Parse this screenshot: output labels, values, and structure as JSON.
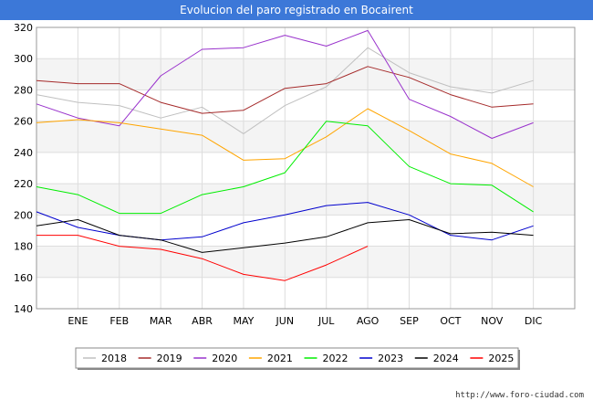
{
  "chart_data": {
    "type": "line",
    "title": "Evolucion del paro registrado en Bocairent",
    "categories": [
      "",
      "ENE",
      "FEB",
      "MAR",
      "ABR",
      "MAY",
      "JUN",
      "JUL",
      "AGO",
      "SEP",
      "OCT",
      "NOV",
      "DIC"
    ],
    "ylim": [
      140,
      320
    ],
    "yticks": [
      140,
      160,
      180,
      200,
      220,
      240,
      260,
      280,
      300,
      320
    ],
    "xlabel": "",
    "ylabel": "",
    "grid": true,
    "legend_position": "bottom",
    "series": [
      {
        "name": "2018",
        "color": "#c0c0c0",
        "values": [
          277,
          272,
          270,
          262,
          269,
          252,
          270,
          282,
          307,
          291,
          282,
          278,
          286
        ]
      },
      {
        "name": "2019",
        "color": "#a52a2a",
        "values": [
          286,
          284,
          284,
          272,
          265,
          267,
          281,
          284,
          295,
          288,
          277,
          269,
          271
        ]
      },
      {
        "name": "2020",
        "color": "#9932cc",
        "values": [
          271,
          262,
          257,
          289,
          306,
          307,
          315,
          308,
          318,
          274,
          263,
          249,
          259
        ]
      },
      {
        "name": "2021",
        "color": "#ffa500",
        "values": [
          259,
          261,
          259,
          255,
          251,
          235,
          236,
          250,
          268,
          254,
          239,
          233,
          218
        ]
      },
      {
        "name": "2022",
        "color": "#00ee00",
        "values": [
          218,
          213,
          201,
          201,
          213,
          218,
          227,
          260,
          257,
          231,
          220,
          219,
          202
        ]
      },
      {
        "name": "2023",
        "color": "#0000cd",
        "values": [
          202,
          192,
          187,
          184,
          186,
          195,
          200,
          206,
          208,
          200,
          187,
          184,
          193
        ]
      },
      {
        "name": "2024",
        "color": "#000000",
        "values": [
          193,
          197,
          187,
          184,
          176,
          179,
          182,
          186,
          195,
          197,
          188,
          189,
          187
        ]
      },
      {
        "name": "2025",
        "color": "#ff0000",
        "values": [
          187,
          187,
          180,
          178,
          172,
          162,
          158,
          168,
          180,
          null,
          null,
          null,
          null
        ]
      }
    ]
  },
  "footer": {
    "url": "http://www.foro-ciudad.com"
  }
}
